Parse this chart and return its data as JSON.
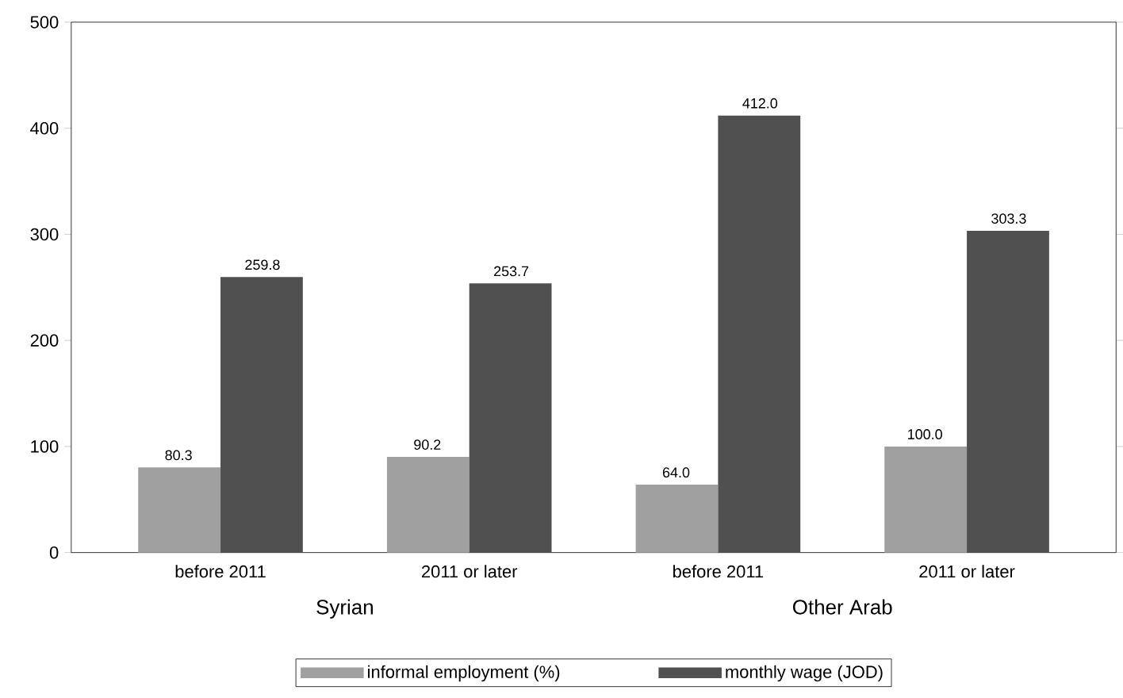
{
  "chart_data": {
    "type": "bar",
    "categories": [
      "before 2011",
      "2011 or later",
      "before 2011",
      "2011 or later"
    ],
    "series": [
      {
        "name": "informal employment (%)",
        "color": "#a0a0a0",
        "values": [
          80.3,
          90.2,
          64.0,
          100.0
        ],
        "value_labels": [
          "80.3",
          "90.2",
          "64.0",
          "100.0"
        ]
      },
      {
        "name": "monthly wage (JOD)",
        "color": "#505050",
        "values": [
          259.8,
          253.7,
          412.0,
          303.3
        ],
        "value_labels": [
          "259.8",
          "253.7",
          "412.0",
          "303.3"
        ]
      }
    ],
    "ylim": [
      0,
      500
    ],
    "yticks": [
      0,
      100,
      200,
      300,
      400,
      500
    ],
    "legend": "bottom",
    "grid": false,
    "annotations": [
      "Syrian",
      "Other Arab"
    ]
  }
}
